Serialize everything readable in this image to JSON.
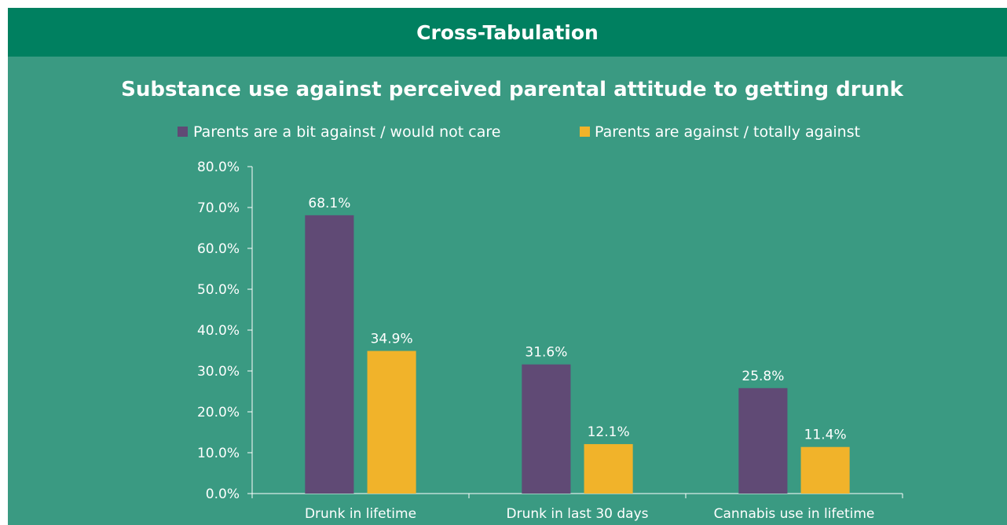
{
  "header": {
    "title": "Cross-Tabulation"
  },
  "colors": {
    "header_bg": "#008060",
    "panel_bg": "#3a9a82",
    "series_1": "#604a75",
    "series_2": "#f1b32a",
    "text": "#ffffff",
    "axis": "#ffffff"
  },
  "chart_data": {
    "type": "bar",
    "title": "Substance use against perceived parental attitude to getting drunk",
    "categories": [
      "Drunk in lifetime",
      "Drunk in last 30 days",
      "Cannabis use in lifetime"
    ],
    "series": [
      {
        "name": "Parents are a bit against / would not care",
        "values": [
          68.1,
          31.6,
          25.8
        ],
        "labels": [
          "68.1%",
          "31.6%",
          "25.8%"
        ]
      },
      {
        "name": "Parents are against / totally against",
        "values": [
          34.9,
          12.1,
          11.4
        ],
        "labels": [
          "34.9%",
          "12.1%",
          "11.4%"
        ]
      }
    ],
    "ylim": [
      0,
      80
    ],
    "yticks": [
      0,
      10,
      20,
      30,
      40,
      50,
      60,
      70,
      80
    ],
    "ytick_labels": [
      "0.0%",
      "10.0%",
      "20.0%",
      "30.0%",
      "40.0%",
      "50.0%",
      "60.0%",
      "70.0%",
      "80.0%"
    ],
    "xlabel": "",
    "ylabel": "",
    "grid": false,
    "legend_position": "top"
  }
}
